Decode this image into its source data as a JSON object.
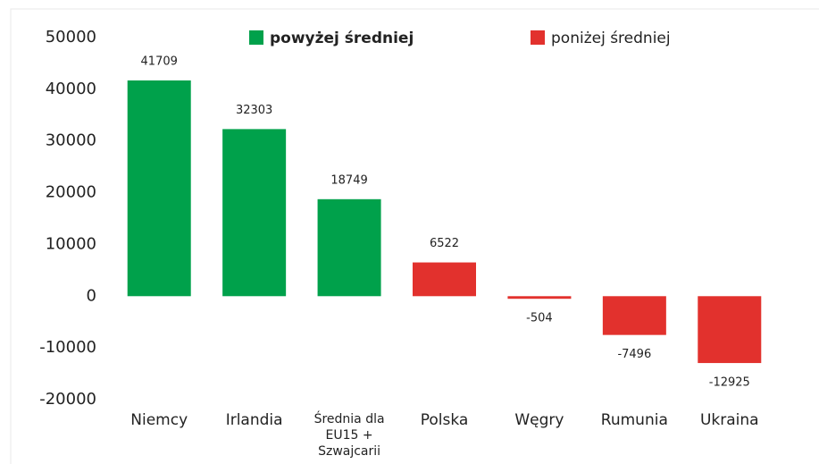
{
  "chart_data": {
    "type": "bar",
    "categories": [
      "Niemcy",
      "Irlandia",
      "Średnia dla EU15 + Szwajcarii",
      "Polska",
      "Węgry",
      "Rumunia",
      "Ukraina"
    ],
    "values": [
      41709,
      32303,
      18749,
      6522,
      -504,
      -7496,
      -12925
    ],
    "colors": [
      "#00a14b",
      "#00a14b",
      "#00a14b",
      "#e2312d",
      "#e2312d",
      "#e2312d",
      "#e2312d"
    ],
    "legend": [
      {
        "name": "powyżej średniej",
        "color": "#00a14b"
      },
      {
        "name": "poniżej średniej",
        "color": "#e2312d"
      }
    ],
    "ylim": [
      -20000,
      50000
    ],
    "yticks": [
      -20000,
      -10000,
      0,
      10000,
      20000,
      30000,
      40000,
      50000
    ]
  }
}
